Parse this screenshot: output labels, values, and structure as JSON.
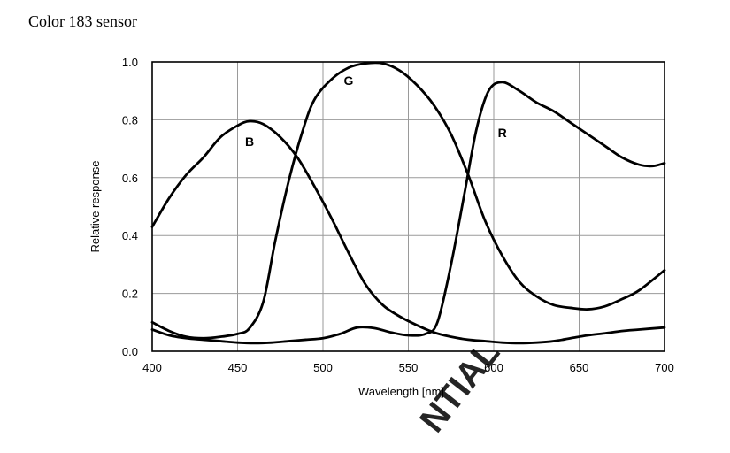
{
  "page": {
    "title": "Color 183 sensor"
  },
  "chart_data": {
    "type": "line",
    "title": "Color 183 sensor",
    "xlabel": "Wavelength [nm]",
    "ylabel": "Relative response",
    "xlim": [
      400,
      700
    ],
    "ylim": [
      0,
      1.0
    ],
    "x_ticks": [
      400,
      450,
      500,
      550,
      600,
      650,
      700
    ],
    "y_ticks": [
      "0.0",
      "0.2",
      "0.4",
      "0.6",
      "0.8",
      "1.0"
    ],
    "grid": true,
    "watermark": "NTIAL",
    "colors": {
      "line": "#000000",
      "grid": "#9a9a9a",
      "watermark": "#ff6a4a"
    },
    "series": [
      {
        "name": "B",
        "label_at": [
          457,
          0.71
        ],
        "points": [
          [
            400,
            0.43
          ],
          [
            410,
            0.53
          ],
          [
            420,
            0.61
          ],
          [
            430,
            0.67
          ],
          [
            440,
            0.74
          ],
          [
            450,
            0.78
          ],
          [
            457,
            0.795
          ],
          [
            465,
            0.785
          ],
          [
            475,
            0.74
          ],
          [
            485,
            0.67
          ],
          [
            495,
            0.57
          ],
          [
            505,
            0.46
          ],
          [
            515,
            0.34
          ],
          [
            525,
            0.23
          ],
          [
            535,
            0.16
          ],
          [
            545,
            0.12
          ],
          [
            555,
            0.09
          ],
          [
            565,
            0.065
          ],
          [
            575,
            0.05
          ],
          [
            585,
            0.04
          ],
          [
            595,
            0.035
          ],
          [
            605,
            0.03
          ],
          [
            615,
            0.028
          ],
          [
            625,
            0.03
          ],
          [
            635,
            0.035
          ],
          [
            645,
            0.045
          ],
          [
            655,
            0.055
          ],
          [
            665,
            0.062
          ],
          [
            675,
            0.07
          ],
          [
            685,
            0.075
          ],
          [
            700,
            0.082
          ]
        ]
      },
      {
        "name": "G",
        "label_at": [
          515,
          0.92
        ],
        "points": [
          [
            400,
            0.1
          ],
          [
            410,
            0.07
          ],
          [
            420,
            0.05
          ],
          [
            430,
            0.045
          ],
          [
            440,
            0.05
          ],
          [
            450,
            0.06
          ],
          [
            457,
            0.08
          ],
          [
            465,
            0.17
          ],
          [
            472,
            0.38
          ],
          [
            480,
            0.59
          ],
          [
            488,
            0.76
          ],
          [
            495,
            0.87
          ],
          [
            505,
            0.94
          ],
          [
            515,
            0.98
          ],
          [
            525,
            0.995
          ],
          [
            535,
            0.995
          ],
          [
            545,
            0.97
          ],
          [
            555,
            0.92
          ],
          [
            565,
            0.85
          ],
          [
            575,
            0.75
          ],
          [
            585,
            0.61
          ],
          [
            595,
            0.45
          ],
          [
            605,
            0.33
          ],
          [
            615,
            0.24
          ],
          [
            625,
            0.19
          ],
          [
            635,
            0.16
          ],
          [
            645,
            0.15
          ],
          [
            655,
            0.145
          ],
          [
            665,
            0.155
          ],
          [
            675,
            0.18
          ],
          [
            685,
            0.21
          ],
          [
            700,
            0.28
          ]
        ]
      },
      {
        "name": "R",
        "label_at": [
          605,
          0.74
        ],
        "points": [
          [
            400,
            0.075
          ],
          [
            410,
            0.055
          ],
          [
            420,
            0.045
          ],
          [
            430,
            0.04
          ],
          [
            440,
            0.035
          ],
          [
            450,
            0.03
          ],
          [
            460,
            0.028
          ],
          [
            470,
            0.03
          ],
          [
            480,
            0.035
          ],
          [
            490,
            0.04
          ],
          [
            500,
            0.045
          ],
          [
            510,
            0.06
          ],
          [
            520,
            0.082
          ],
          [
            530,
            0.08
          ],
          [
            540,
            0.065
          ],
          [
            550,
            0.055
          ],
          [
            560,
            0.06
          ],
          [
            567,
            0.1
          ],
          [
            575,
            0.3
          ],
          [
            583,
            0.55
          ],
          [
            590,
            0.77
          ],
          [
            597,
            0.9
          ],
          [
            605,
            0.93
          ],
          [
            615,
            0.9
          ],
          [
            625,
            0.86
          ],
          [
            635,
            0.83
          ],
          [
            645,
            0.79
          ],
          [
            655,
            0.75
          ],
          [
            665,
            0.71
          ],
          [
            675,
            0.67
          ],
          [
            685,
            0.645
          ],
          [
            693,
            0.64
          ],
          [
            700,
            0.65
          ]
        ]
      }
    ]
  }
}
